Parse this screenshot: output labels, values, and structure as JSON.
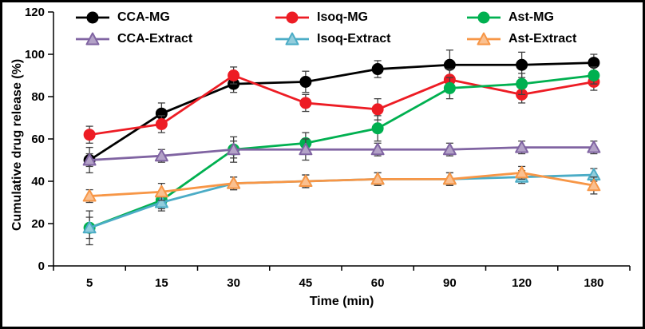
{
  "chart_data": {
    "type": "line",
    "title": "",
    "xlabel": "Time (min)",
    "ylabel": "Cumulative drug release (%)",
    "categories": [
      "5",
      "15",
      "30",
      "45",
      "60",
      "90",
      "120",
      "180"
    ],
    "ylim": [
      0,
      120
    ],
    "ytick_step": 20,
    "grid": false,
    "legend_position": "top-inside",
    "error_bars": true,
    "series": [
      {
        "name": "CCA-MG",
        "color": "#000000",
        "fill": "#000000",
        "marker": "circle",
        "values": [
          50,
          72,
          86,
          87,
          93,
          95,
          95,
          96
        ],
        "errors": [
          6,
          5,
          4,
          5,
          4,
          7,
          6,
          4
        ]
      },
      {
        "name": "Isoq-MG",
        "color": "#ed1c24",
        "fill": "#ed1c24",
        "marker": "circle",
        "values": [
          62,
          67,
          90,
          77,
          74,
          88,
          81,
          87
        ],
        "errors": [
          4,
          4,
          4,
          4,
          5,
          5,
          4,
          4
        ]
      },
      {
        "name": "Ast-MG",
        "color": "#00b050",
        "fill": "#00b050",
        "marker": "circle",
        "values": [
          18,
          31,
          55,
          58,
          65,
          84,
          86,
          90
        ],
        "errors": [
          5,
          4,
          6,
          5,
          6,
          5,
          5,
          4
        ]
      },
      {
        "name": "CCA-Extract",
        "color": "#8064a2",
        "fill": "#b3a2c7",
        "marker": "triangle",
        "values": [
          50,
          52,
          55,
          55,
          55,
          55,
          56,
          56
        ],
        "errors": [
          3,
          3,
          4,
          5,
          3,
          3,
          3,
          3
        ]
      },
      {
        "name": "Isoq-Extract",
        "color": "#4bacc6",
        "fill": "#92cddc",
        "marker": "triangle",
        "values": [
          18,
          30,
          39,
          40,
          41,
          41,
          42,
          43
        ],
        "errors": [
          8,
          4,
          3,
          3,
          3,
          3,
          3,
          3
        ]
      },
      {
        "name": "Ast-Extract",
        "color": "#f79646",
        "fill": "#fac090",
        "marker": "triangle",
        "values": [
          33,
          35,
          39,
          40,
          41,
          41,
          44,
          38
        ],
        "errors": [
          3,
          4,
          3,
          3,
          3,
          3,
          3,
          4
        ]
      }
    ]
  }
}
